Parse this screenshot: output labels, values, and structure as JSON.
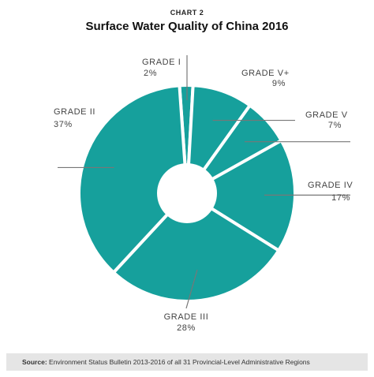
{
  "chart_label": "CHART 2",
  "chart_title": "Surface Water Quality of China 2016",
  "source": {
    "prefix": "Source:",
    "text": "Environment Status Bulletin 2013-2016 of all 31 Provincial-Level Administrative Regions"
  },
  "colors": {
    "slice": "#16a09c",
    "separator": "#ffffff",
    "leader": "#777777"
  },
  "chart_data": {
    "type": "pie",
    "style": "donut",
    "title": "Surface Water Quality of China 2016",
    "slices": [
      {
        "label": "GRADE I",
        "value": 2,
        "display": "2%"
      },
      {
        "label": "GRADE V+",
        "value": 9,
        "display": "9%"
      },
      {
        "label": "GRADE V",
        "value": 7,
        "display": "7%"
      },
      {
        "label": "GRADE IV",
        "value": 17,
        "display": "17%"
      },
      {
        "label": "GRADE III",
        "value": 28,
        "display": "28%"
      },
      {
        "label": "GRADE II",
        "value": 37,
        "display": "37%"
      }
    ]
  }
}
